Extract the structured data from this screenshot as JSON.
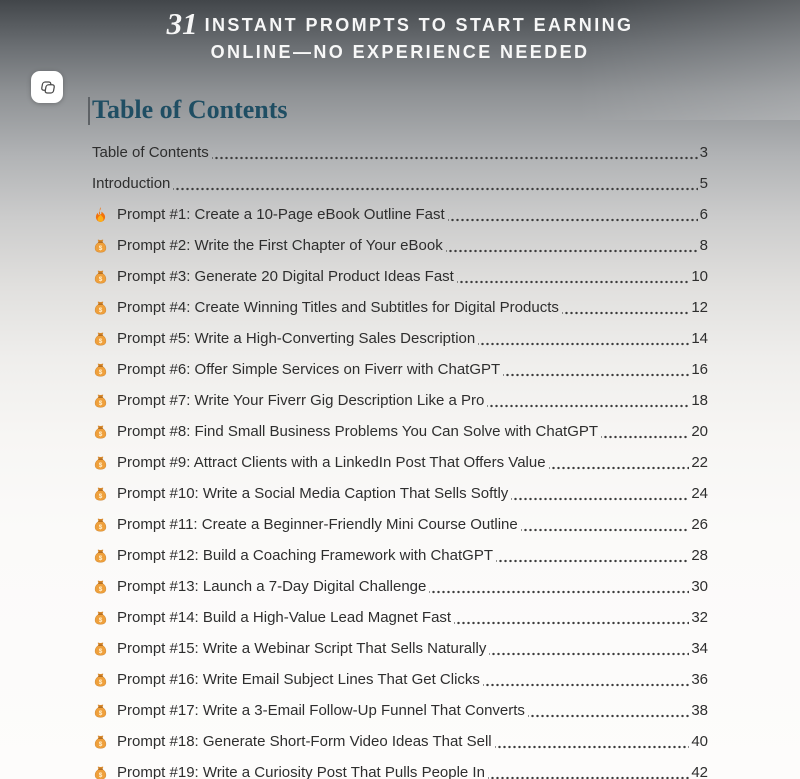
{
  "header": {
    "number": "31",
    "line1": "INSTANT PROMPTS TO START EARNING",
    "line2": "ONLINE—NO EXPERIENCE NEEDED"
  },
  "page": {
    "heading": "Table of Contents"
  },
  "toc": {
    "entries": [
      {
        "icon": null,
        "label": "Table of Contents",
        "page": "3"
      },
      {
        "icon": null,
        "label": "Introduction",
        "page": "5"
      },
      {
        "icon": "fire",
        "label": "Prompt #1: Create a 10-Page eBook Outline Fast",
        "page": "6"
      },
      {
        "icon": "money-bag",
        "label": "Prompt #2: Write the First Chapter of Your eBook",
        "page": "8"
      },
      {
        "icon": "money-bag",
        "label": "Prompt #3: Generate 20 Digital Product Ideas Fast",
        "page": "10"
      },
      {
        "icon": "money-bag",
        "label": "Prompt #4: Create Winning Titles and Subtitles for Digital Products",
        "page": "12"
      },
      {
        "icon": "money-bag",
        "label": "Prompt #5: Write a High-Converting Sales Description",
        "page": "14"
      },
      {
        "icon": "money-bag",
        "label": "Prompt #6: Offer Simple Services on Fiverr with ChatGPT",
        "page": "16"
      },
      {
        "icon": "money-bag",
        "label": "Prompt #7: Write Your Fiverr Gig Description Like a Pro",
        "page": "18"
      },
      {
        "icon": "money-bag",
        "label": "Prompt #8: Find Small Business Problems You Can Solve with ChatGPT",
        "page": "20"
      },
      {
        "icon": "money-bag",
        "label": "Prompt #9: Attract Clients with a LinkedIn Post That Offers Value",
        "page": "22"
      },
      {
        "icon": "money-bag",
        "label": "Prompt #10: Write a Social Media Caption That Sells Softly",
        "page": "24"
      },
      {
        "icon": "money-bag",
        "label": "Prompt #11: Create a Beginner-Friendly Mini Course Outline",
        "page": "26"
      },
      {
        "icon": "money-bag",
        "label": "Prompt #12: Build a Coaching Framework with ChatGPT",
        "page": "28"
      },
      {
        "icon": "money-bag",
        "label": "Prompt #13: Launch a 7-Day Digital Challenge",
        "page": "30"
      },
      {
        "icon": "money-bag",
        "label": "Prompt #14: Build a High-Value Lead Magnet Fast",
        "page": "32"
      },
      {
        "icon": "money-bag",
        "label": "Prompt #15: Write a Webinar Script That Sells Naturally",
        "page": "34"
      },
      {
        "icon": "money-bag",
        "label": "Prompt #16: Write Email Subject Lines That Get Clicks",
        "page": "36"
      },
      {
        "icon": "money-bag",
        "label": "Prompt #17: Write a 3-Email Follow-Up Funnel That Converts",
        "page": "38"
      },
      {
        "icon": "money-bag",
        "label": "Prompt #18: Generate Short-Form Video Ideas That Sell",
        "page": "40"
      },
      {
        "icon": "money-bag",
        "label": "Prompt #19: Write a Curiosity Post That Pulls People In",
        "page": "42"
      }
    ]
  },
  "colors": {
    "header_number_green": "#9CE8A3",
    "header_text": "#FFFFFF",
    "heading_teal": "#1F4E63",
    "body_text": "#2E2E2E",
    "banner_top_gray": "#42464A"
  }
}
